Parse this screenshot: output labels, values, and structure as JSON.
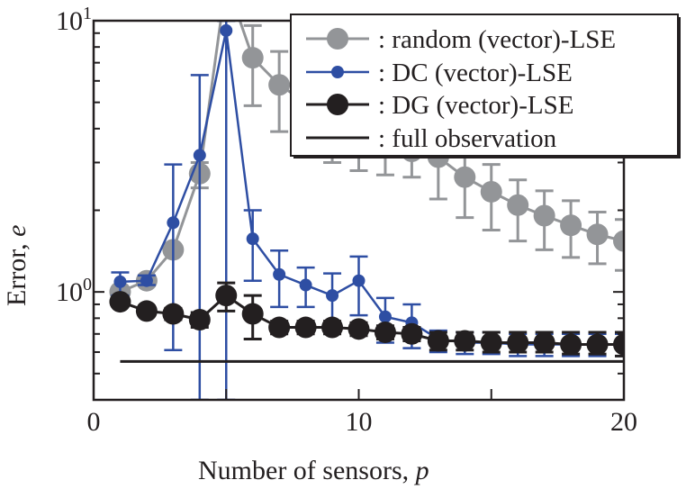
{
  "chart_data": {
    "type": "line",
    "title": "",
    "xlabel": "Number of sensors, ",
    "xlabel_var": "p",
    "ylabel": "Error, ",
    "ylabel_var": "e",
    "xlim": [
      0,
      20
    ],
    "ylim": [
      0.4,
      10
    ],
    "yscale": "log",
    "xticks": [
      0,
      10,
      20
    ],
    "xminor_ticks": [
      5,
      15
    ],
    "yticks": [
      {
        "base": "10",
        "exp": "0",
        "value": 1
      },
      {
        "base": "10",
        "exp": "1",
        "value": 10
      }
    ],
    "grid": false,
    "legend_position": "top-right",
    "x": [
      1,
      2,
      3,
      4,
      5,
      6,
      7,
      8,
      9,
      10,
      11,
      12,
      13,
      14,
      15,
      16,
      17,
      18,
      19,
      20
    ],
    "series": [
      {
        "name": ": random (vector)-LSE",
        "color": "#939598",
        "marker": "large",
        "values": [
          1.0,
          1.1,
          1.43,
          2.73,
          14.0,
          7.3,
          5.8,
          5.0,
          4.4,
          3.9,
          3.6,
          3.3,
          3.14,
          2.65,
          2.34,
          2.09,
          1.91,
          1.76,
          1.63,
          1.54
        ],
        "err_low": [
          0.97,
          1.06,
          1.38,
          2.42,
          10.0,
          4.86,
          3.9,
          3.4,
          3.0,
          2.8,
          2.7,
          2.65,
          2.2,
          1.88,
          1.69,
          1.54,
          1.43,
          1.34,
          1.27,
          1.2
        ],
        "err_high": [
          1.03,
          1.14,
          1.48,
          3.0,
          10.0,
          9.6,
          7.7,
          6.6,
          5.9,
          5.2,
          4.6,
          4.2,
          3.8,
          3.4,
          2.95,
          2.59,
          2.36,
          2.17,
          1.97,
          1.85
        ]
      },
      {
        "name": ": DC (vector)-LSE",
        "color": "#2e4ea3",
        "marker": "small",
        "values": [
          1.09,
          1.1,
          1.8,
          3.19,
          9.2,
          1.57,
          1.16,
          1.06,
          0.97,
          1.1,
          0.81,
          0.77,
          0.67,
          0.65,
          0.65,
          0.64,
          0.64,
          0.64,
          0.64,
          0.64
        ],
        "err_low": [
          0.97,
          1.06,
          0.61,
          0.4,
          0.4,
          1.1,
          0.88,
          0.88,
          0.76,
          0.82,
          0.65,
          0.62,
          0.6,
          0.59,
          0.59,
          0.58,
          0.58,
          0.58,
          0.58,
          0.58
        ],
        "err_high": [
          1.18,
          1.15,
          2.95,
          6.3,
          10.0,
          2.0,
          1.42,
          1.23,
          1.17,
          1.35,
          0.95,
          0.9,
          0.72,
          0.71,
          0.71,
          0.7,
          0.7,
          0.7,
          0.7,
          0.7
        ]
      },
      {
        "name": ": DG (vector)-LSE",
        "color": "#231f20",
        "marker": "large",
        "values": [
          0.92,
          0.85,
          0.83,
          0.79,
          0.97,
          0.83,
          0.74,
          0.74,
          0.74,
          0.73,
          0.71,
          0.7,
          0.66,
          0.66,
          0.65,
          0.65,
          0.65,
          0.64,
          0.64,
          0.64
        ],
        "err_low": [
          0.9,
          0.82,
          0.79,
          0.74,
          0.85,
          0.67,
          0.7,
          0.7,
          0.7,
          0.69,
          0.67,
          0.66,
          0.61,
          0.61,
          0.6,
          0.6,
          0.6,
          0.59,
          0.59,
          0.58
        ],
        "err_high": [
          0.95,
          0.88,
          0.87,
          0.84,
          1.08,
          0.97,
          0.78,
          0.78,
          0.78,
          0.77,
          0.75,
          0.74,
          0.71,
          0.71,
          0.71,
          0.71,
          0.71,
          0.71,
          0.71,
          0.71
        ]
      },
      {
        "name": ": full observation",
        "color": "#231f20",
        "marker": "none",
        "x_range": [
          1,
          20
        ],
        "value": 0.554
      }
    ]
  }
}
